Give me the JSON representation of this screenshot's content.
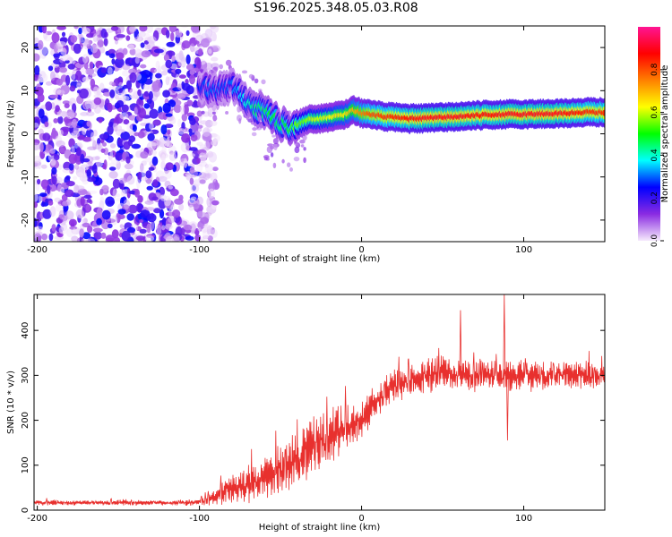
{
  "page_title": "S196.2025.348.05.03.R08",
  "chart_data": [
    {
      "type": "heatmap",
      "title": "",
      "xlabel": "Height of straight line (km)",
      "ylabel": "Frequency (Hz)",
      "xlim": [
        -202,
        150
      ],
      "ylim": [
        -25,
        25
      ],
      "xticks": [
        -200,
        -100,
        0,
        100
      ],
      "yticks": [
        -20,
        -10,
        0,
        10,
        20
      ],
      "colorbar": {
        "label": "Normalized spectral amplitude",
        "range": [
          0,
          1
        ],
        "ticks": [
          "0.0",
          "0.2",
          "0.4",
          "0.6",
          "0.8"
        ],
        "tick_values": [
          0.0,
          0.2,
          0.4,
          0.6,
          0.8
        ],
        "colors": [
          "#f6eafc",
          "#8a2be2",
          "#0000ff",
          "#00ffff",
          "#00ff00",
          "#ffff00",
          "#ff8000",
          "#ff0000",
          "#ff1493"
        ]
      },
      "noise_region": {
        "x_range": [
          -202,
          -93
        ],
        "f_range": [
          -25,
          25
        ]
      },
      "ridge_x": [
        -100,
        -95,
        -90,
        -85,
        -80,
        -75,
        -70,
        -65,
        -60,
        -55,
        -50,
        -45,
        -40,
        -35,
        -30,
        -25,
        -20,
        -15,
        -10,
        -5,
        0,
        5,
        10,
        20,
        30,
        40,
        50,
        60,
        70,
        80,
        90,
        100,
        110,
        120,
        130,
        140,
        150
      ],
      "ridge_freq": [
        11.5,
        10.5,
        10.0,
        10.5,
        11.0,
        9.5,
        7.0,
        6.0,
        5.0,
        4.0,
        2.5,
        1.5,
        2.0,
        3.0,
        3.5,
        3.5,
        3.8,
        4.2,
        4.5,
        5.5,
        4.8,
        4.5,
        4.2,
        3.8,
        3.5,
        3.6,
        3.8,
        4.0,
        4.2,
        4.4,
        4.5,
        4.5,
        4.6,
        4.7,
        4.8,
        5.0,
        5.0
      ],
      "ridge_amp": [
        0.25,
        0.3,
        0.3,
        0.28,
        0.3,
        0.35,
        0.4,
        0.45,
        0.45,
        0.5,
        0.45,
        0.5,
        0.55,
        0.55,
        0.6,
        0.6,
        0.62,
        0.65,
        0.65,
        0.7,
        0.75,
        0.8,
        0.82,
        0.85,
        0.88,
        0.9,
        0.9,
        0.9,
        0.88,
        0.88,
        0.9,
        0.9,
        0.9,
        0.9,
        0.88,
        0.85,
        0.85
      ]
    },
    {
      "type": "line",
      "title": "",
      "xlabel": "Height of straight line (km)",
      "ylabel": "SNR (10 * v/v)",
      "xlim": [
        -202,
        150
      ],
      "ylim": [
        0,
        480
      ],
      "xticks": [
        -200,
        -100,
        0,
        100
      ],
      "yticks": [
        0,
        100,
        200,
        300,
        400
      ],
      "color": "#e8302e",
      "series": [
        {
          "name": "SNR",
          "x": [
            -202,
            -190,
            -180,
            -170,
            -160,
            -150,
            -140,
            -130,
            -120,
            -110,
            -100,
            -95,
            -90,
            -85,
            -80,
            -75,
            -70,
            -65,
            -60,
            -55,
            -50,
            -45,
            -40,
            -35,
            -30,
            -25,
            -20,
            -15,
            -10,
            -5,
            0,
            5,
            10,
            15,
            20,
            25,
            30,
            35,
            40,
            45,
            50,
            55,
            60,
            65,
            70,
            75,
            80,
            85,
            90,
            95,
            100,
            105,
            110,
            115,
            120,
            125,
            130,
            135,
            140,
            145,
            150
          ],
          "baseline": [
            17,
            17,
            16,
            17,
            16,
            17,
            16,
            17,
            16,
            17,
            18,
            22,
            30,
            40,
            48,
            52,
            55,
            60,
            70,
            80,
            90,
            100,
            115,
            130,
            140,
            150,
            165,
            175,
            180,
            190,
            205,
            225,
            245,
            262,
            272,
            282,
            290,
            295,
            300,
            305,
            305,
            300,
            302,
            300,
            300,
            302,
            300,
            298,
            300,
            298,
            302,
            300,
            298,
            300,
            302,
            300,
            300,
            302,
            300,
            300,
            300
          ],
          "spread": [
            10,
            10,
            10,
            10,
            10,
            10,
            10,
            10,
            10,
            10,
            14,
            25,
            35,
            50,
            60,
            65,
            70,
            75,
            80,
            90,
            95,
            95,
            100,
            110,
            120,
            115,
            110,
            100,
            90,
            85,
            80,
            75,
            70,
            65,
            62,
            60,
            60,
            62,
            62,
            65,
            62,
            62,
            60,
            60,
            58,
            58,
            60,
            65,
            70,
            60,
            58,
            55,
            55,
            52,
            52,
            52,
            50,
            50,
            50,
            50,
            50
          ]
        }
      ],
      "peaks": [
        {
          "x": 61,
          "y": 445
        },
        {
          "x": 88,
          "y": 480
        },
        {
          "x": 90,
          "y": 155
        }
      ]
    }
  ]
}
